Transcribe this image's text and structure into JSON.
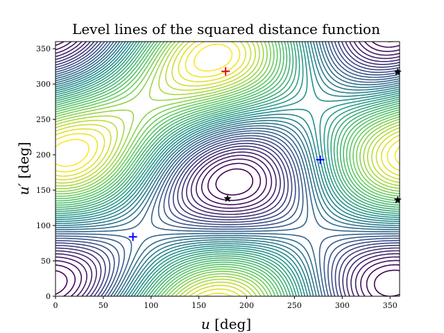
{
  "chart_data": {
    "type": "contour",
    "title": "Level lines of the squared distance function",
    "xlabel_var": "u",
    "xlabel_unit": "[deg]",
    "ylabel_var": "u′",
    "ylabel_unit": "[deg]",
    "xlim": [
      0,
      360
    ],
    "ylim": [
      0,
      360
    ],
    "xticks": [
      0,
      50,
      100,
      150,
      200,
      250,
      300,
      350
    ],
    "yticks": [
      0,
      50,
      100,
      150,
      200,
      250,
      300,
      350
    ],
    "colormap": [
      "#440154",
      "#3b528b",
      "#21918c",
      "#5ec962",
      "#fde725"
    ],
    "grid": false,
    "markers": [
      {
        "kind": "maximum",
        "symbol": "+",
        "color": "#e8001c",
        "x": 178,
        "y": 318
      },
      {
        "kind": "minimum",
        "symbol": "+",
        "color": "#0000ff",
        "x": 81,
        "y": 84
      },
      {
        "kind": "minimum",
        "symbol": "+",
        "color": "#0000ff",
        "x": 277,
        "y": 193
      },
      {
        "kind": "saddle",
        "symbol": "★",
        "color": "#000000",
        "x": 180,
        "y": 138
      },
      {
        "kind": "saddle",
        "symbol": "★",
        "color": "#000000",
        "x": 358,
        "y": 136
      },
      {
        "kind": "saddle",
        "symbol": "★",
        "color": "#000000",
        "x": 358,
        "y": 317
      }
    ]
  }
}
